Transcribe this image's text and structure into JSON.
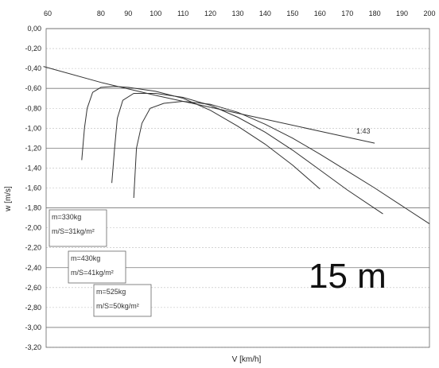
{
  "chart_data": {
    "type": "line",
    "xlabel": "V [km/h]",
    "ylabel": "w [m/s]",
    "xlim": [
      60,
      200
    ],
    "ylim": [
      -3.2,
      0
    ],
    "x_ticks": [
      "80",
      "90",
      "100",
      "110",
      "120",
      "130",
      "140",
      "150",
      "160",
      "170",
      "180",
      "190",
      "200"
    ],
    "y_ticks": [
      "0,00",
      "-0,20",
      "-0,40",
      "-0,60",
      "-0,80",
      "-1,00",
      "-1,20",
      "-1,40",
      "-1,60",
      "-1,80",
      "-2,00",
      "-2,20",
      "-2,40",
      "-2,60",
      "-2,80",
      "-3,00",
      "-3,20"
    ],
    "big_label": "15 m",
    "glide_ratio_label": "1:43",
    "series": [
      {
        "x": [
          59,
          80,
          100,
          120,
          140,
          160,
          180
        ],
        "y": [
          -0.38,
          -0.54,
          -0.67,
          -0.79,
          -0.91,
          -1.03,
          -1.15
        ]
      },
      {
        "x": [
          73,
          74,
          75,
          77,
          80,
          85,
          90,
          100,
          110,
          120,
          130,
          140,
          150,
          160
        ],
        "y": [
          -1.32,
          -1.0,
          -0.8,
          -0.64,
          -0.59,
          -0.58,
          -0.59,
          -0.63,
          -0.7,
          -0.82,
          -0.98,
          -1.16,
          -1.37,
          -1.61
        ]
      },
      {
        "x": [
          84,
          85,
          86,
          88,
          92,
          100,
          110,
          120,
          130,
          140,
          150,
          160,
          170,
          183
        ],
        "y": [
          -1.55,
          -1.2,
          -0.9,
          -0.72,
          -0.65,
          -0.65,
          -0.69,
          -0.77,
          -0.89,
          -1.04,
          -1.22,
          -1.42,
          -1.62,
          -1.86
        ]
      },
      {
        "x": [
          92,
          93,
          95,
          98,
          103,
          110,
          120,
          130,
          140,
          150,
          160,
          170,
          180,
          190,
          200
        ],
        "y": [
          -1.7,
          -1.2,
          -0.95,
          -0.8,
          -0.75,
          -0.73,
          -0.76,
          -0.84,
          -0.96,
          -1.1,
          -1.26,
          -1.43,
          -1.6,
          -1.78,
          -1.96
        ]
      }
    ],
    "annotations": [
      {
        "lines": [
          "m=330kg",
          "m/S=31kg/m²"
        ]
      },
      {
        "lines": [
          "m=430kg",
          "m/S=41kg/m²"
        ]
      },
      {
        "lines": [
          "m=525kg",
          "m/S=50kg/m²"
        ]
      }
    ],
    "grid": true
  }
}
